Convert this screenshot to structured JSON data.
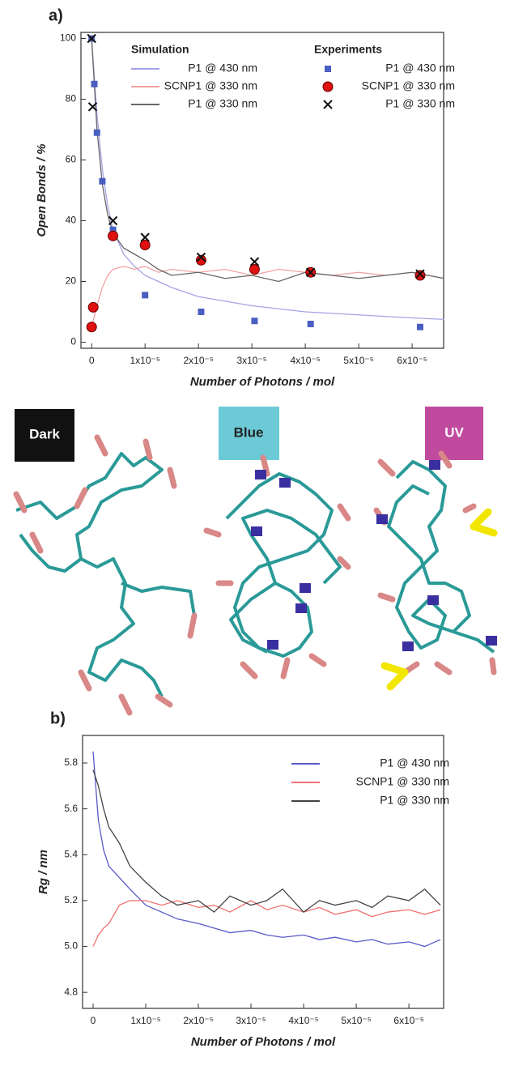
{
  "chart_data": [
    {
      "type": "line",
      "panel": "a)",
      "xlabel": "Number of Photons / mol",
      "ylabel": "Open Bonds / %",
      "xlim": [
        -2e-06,
        6.59e-05
      ],
      "ylim": [
        -2,
        102
      ],
      "xticks": [
        0,
        {
          "value": 1e-05,
          "label": "1x10⁻⁵"
        },
        {
          "value": 2e-05,
          "label": "2x10⁻⁵"
        },
        {
          "value": 3e-05,
          "label": "3x10⁻⁵"
        },
        {
          "value": 4e-05,
          "label": "4x10⁻⁵"
        },
        {
          "value": 5e-05,
          "label": "5x10⁻⁵"
        },
        {
          "value": 6e-05,
          "label": "6x10⁻⁵"
        }
      ],
      "yticks": [
        0,
        20,
        40,
        60,
        80,
        100
      ],
      "legend_titles": [
        "Simulation",
        "Experiments"
      ],
      "x": [
        0,
        1e-06,
        2e-06,
        3e-06,
        4e-06,
        6e-06,
        8e-06,
        1e-05,
        1.25e-05,
        1.5e-05,
        2e-05,
        2.5e-05,
        3e-05,
        3.5e-05,
        4e-05,
        4.5e-05,
        5e-05,
        5.5e-05,
        6e-05,
        6.6e-05
      ],
      "series": [
        {
          "name": "P1 @ 430 nm",
          "type": "line",
          "legend_column": 0,
          "color": "#a4a4e6",
          "values": [
            100,
            75,
            57,
            45,
            37,
            29,
            25,
            22,
            20,
            18,
            15,
            13.5,
            12,
            11,
            10,
            9.5,
            9,
            8.5,
            8,
            7.5
          ]
        },
        {
          "name": "SCNP1 @ 330 nm",
          "type": "line",
          "legend_column": 0,
          "color": "#f2a2a2",
          "values": [
            5,
            12,
            18,
            22,
            24,
            25,
            24,
            25,
            23,
            24,
            23,
            24,
            22,
            24,
            23,
            22,
            23,
            22,
            23,
            21
          ]
        },
        {
          "name": "P1 @ 330 nm",
          "type": "line",
          "legend_column": 0,
          "color": "#666666",
          "values": [
            100,
            70,
            52,
            42,
            36,
            31,
            29,
            27,
            24,
            22,
            23,
            21,
            22,
            20,
            23,
            22,
            21,
            22,
            23,
            21
          ]
        },
        {
          "name": "P1 @ 430 nm",
          "type": "scatter",
          "marker": "square",
          "legend_column": 1,
          "color": "#4a5fc1",
          "x": [
            0,
            5e-07,
            1e-06,
            2e-06,
            4e-06,
            1e-05,
            2.05e-05,
            3.05e-05,
            4.1e-05,
            6.15e-05
          ],
          "values": [
            100,
            85,
            69,
            53,
            37,
            15.5,
            10,
            7,
            6,
            5
          ]
        },
        {
          "name": "SCNP1 @ 330 nm",
          "type": "scatter",
          "marker": "circle",
          "legend_column": 1,
          "color": "#e01010",
          "x": [
            0,
            3e-07,
            4e-06,
            1e-05,
            2.05e-05,
            3.05e-05,
            4.1e-05,
            6.15e-05
          ],
          "values": [
            5,
            11.5,
            35,
            32,
            27,
            24,
            23,
            22
          ]
        },
        {
          "name": "P1 @ 330 nm",
          "type": "scatter",
          "marker": "cross",
          "legend_column": 1,
          "color": "#111111",
          "x": [
            0,
            2e-07,
            4e-06,
            1e-05,
            2.05e-05,
            3.05e-05,
            4.1e-05,
            6.15e-05
          ],
          "values": [
            100,
            77.5,
            40,
            34.5,
            28,
            26.5,
            23,
            22.5
          ]
        }
      ]
    },
    {
      "type": "line",
      "panel": "b)",
      "xlabel": "Number of Photons / mol",
      "ylabel": "Rg / nm",
      "xlim": [
        -2e-06,
        6.66e-05
      ],
      "ylim": [
        4.73,
        5.92
      ],
      "xticks": [
        0,
        {
          "value": 1e-05,
          "label": "1x10⁻⁵"
        },
        {
          "value": 2e-05,
          "label": "2x10⁻⁵"
        },
        {
          "value": 3e-05,
          "label": "3x10⁻⁵"
        },
        {
          "value": 4e-05,
          "label": "4x10⁻⁵"
        },
        {
          "value": 5e-05,
          "label": "5x10⁻⁵"
        },
        {
          "value": 6e-05,
          "label": "6x10⁻⁵"
        }
      ],
      "yticks": [
        4.8,
        {
          "value": 5,
          "label": "5.0"
        },
        5.2,
        5.4,
        5.6,
        5.8
      ],
      "x": [
        0,
        1e-06,
        2e-06,
        3e-06,
        5e-06,
        7e-06,
        1e-05,
        1.3e-05,
        1.6e-05,
        2e-05,
        2.3e-05,
        2.6e-05,
        3e-05,
        3.3e-05,
        3.6e-05,
        4e-05,
        4.3e-05,
        4.6e-05,
        5e-05,
        5.3e-05,
        5.6e-05,
        6e-05,
        6.3e-05,
        6.6e-05
      ],
      "series": [
        {
          "name": "P1 @ 430 nm",
          "type": "line",
          "color": "#5a5ac8",
          "values": [
            5.85,
            5.55,
            5.42,
            5.35,
            5.3,
            5.25,
            5.18,
            5.15,
            5.12,
            5.1,
            5.08,
            5.06,
            5.07,
            5.05,
            5.04,
            5.05,
            5.03,
            5.04,
            5.02,
            5.03,
            5.01,
            5.02,
            5.0,
            5.03
          ]
        },
        {
          "name": "SCNP1 @ 330 nm",
          "type": "line",
          "color": "#f07070",
          "values": [
            5.0,
            5.05,
            5.08,
            5.1,
            5.18,
            5.2,
            5.2,
            5.18,
            5.2,
            5.17,
            5.18,
            5.15,
            5.2,
            5.16,
            5.18,
            5.15,
            5.17,
            5.14,
            5.16,
            5.13,
            5.15,
            5.16,
            5.14,
            5.16
          ]
        },
        {
          "name": "P1 @ 330 nm",
          "type": "line",
          "color": "#444444",
          "values": [
            5.77,
            5.7,
            5.6,
            5.52,
            5.45,
            5.35,
            5.28,
            5.22,
            5.18,
            5.2,
            5.15,
            5.22,
            5.18,
            5.2,
            5.25,
            5.15,
            5.2,
            5.18,
            5.2,
            5.17,
            5.22,
            5.2,
            5.25,
            5.18
          ]
        }
      ]
    }
  ],
  "structures": [
    "Dark",
    "Blue",
    "UV"
  ]
}
